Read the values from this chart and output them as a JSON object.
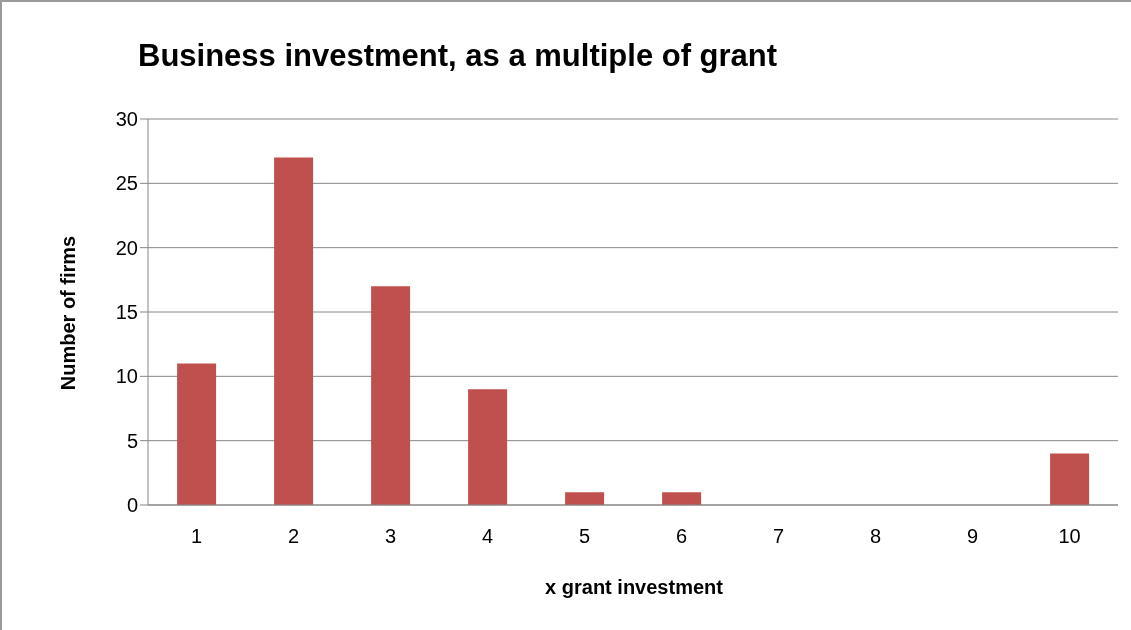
{
  "chart_data": {
    "type": "bar",
    "title": "Business investment, as a multiple of grant",
    "xlabel": "x grant investment",
    "ylabel": "Number of firms",
    "categories": [
      "1",
      "2",
      "3",
      "4",
      "5",
      "6",
      "7",
      "8",
      "9",
      "10"
    ],
    "values": [
      11,
      27,
      17,
      9,
      1,
      1,
      0,
      0,
      0,
      4
    ],
    "color": "#c0504d",
    "ylim": [
      0,
      30
    ],
    "yticks": [
      0,
      5,
      10,
      15,
      20,
      25,
      30
    ],
    "grid": "y"
  }
}
